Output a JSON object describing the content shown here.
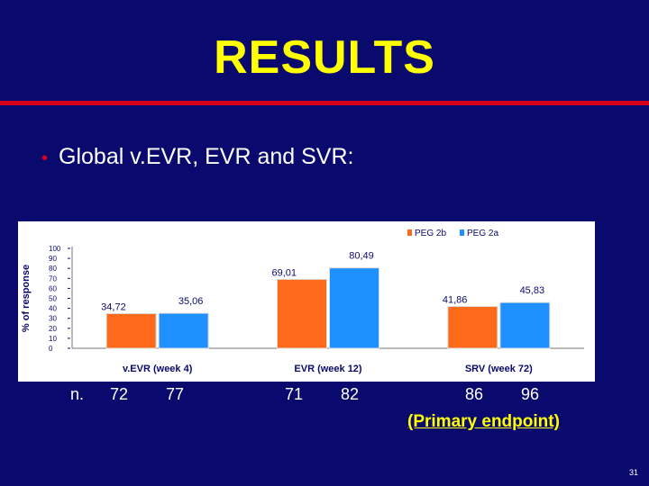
{
  "slide": {
    "title": "RESULTS",
    "bullet": "Global v.EVR, EVR and SVR:",
    "counts_label": "n.",
    "counts": [
      "72",
      "77",
      "71",
      "82",
      "86",
      "96"
    ],
    "endpoint_note": "(Primary endpoint)",
    "page_number": "31"
  },
  "chart_data": {
    "type": "bar",
    "ylabel": "% of response",
    "ylim": [
      0,
      100
    ],
    "yticks": [
      0,
      10,
      20,
      30,
      40,
      50,
      60,
      70,
      80,
      90,
      100
    ],
    "categories": [
      "v.EVR (week 4)",
      "EVR (week 12)",
      "SRV (week 72)"
    ],
    "series": [
      {
        "name": "PEG 2b",
        "values": [
          34.72,
          69.01,
          41.86
        ],
        "labels": [
          "34,72",
          "69,01",
          "41,86"
        ],
        "color": "#ff6a1a"
      },
      {
        "name": "PEG 2a",
        "values": [
          35.06,
          80.49,
          45.83
        ],
        "labels": [
          "35,06",
          "80,49",
          "45,83"
        ],
        "color": "#1e90ff"
      }
    ],
    "legend": "top-right",
    "grid": false
  }
}
